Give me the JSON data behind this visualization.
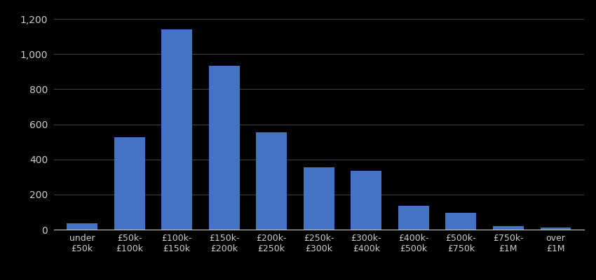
{
  "categories": [
    "under\n£50k",
    "£50k-\n£100k",
    "£100k-\n£150k",
    "£150k-\n£200k",
    "£200k-\n£250k",
    "£250k-\n£300k",
    "£300k-\n£400k",
    "£400k-\n£500k",
    "£500k-\n£750k",
    "£750k-\n£1M",
    "over\n£1M"
  ],
  "values": [
    35,
    525,
    1140,
    935,
    555,
    355,
    335,
    135,
    95,
    20,
    10
  ],
  "bar_color": "#4472C4",
  "background_color": "#000000",
  "text_color": "#cccccc",
  "grid_color": "#444444",
  "ylim": [
    0,
    1260
  ],
  "yticks": [
    0,
    200,
    400,
    600,
    800,
    1000,
    1200
  ],
  "bar_width": 0.65
}
